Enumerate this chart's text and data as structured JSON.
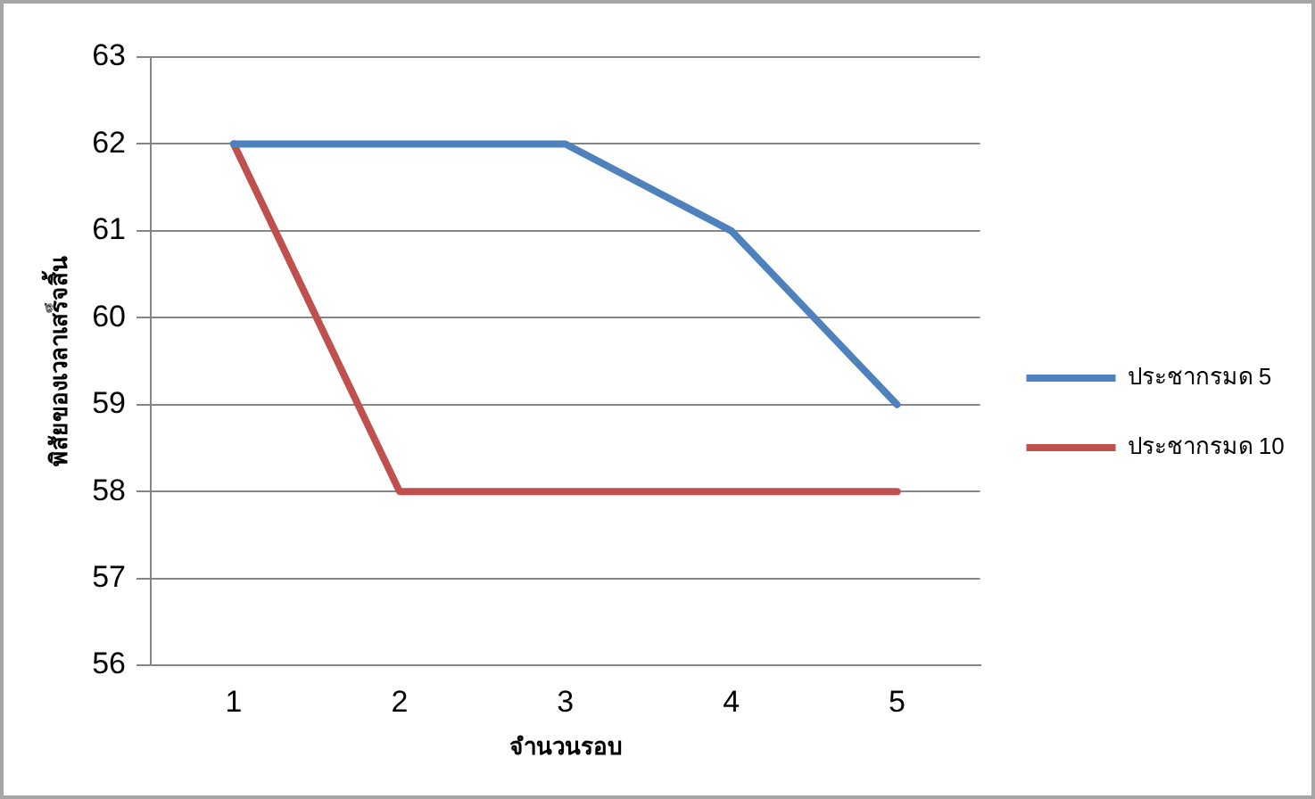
{
  "chart_data": {
    "type": "line",
    "xlabel": "จำนวนรอบ",
    "ylabel": "พิสัยของเวลาเสร็จสิ้น",
    "categories": [
      "1",
      "2",
      "3",
      "4",
      "5"
    ],
    "series": [
      {
        "name": "ประชากรมด 5",
        "color": "#4f81bd",
        "values": [
          62,
          62,
          62,
          61,
          59
        ]
      },
      {
        "name": "ประชากรมด 10",
        "color": "#c0504d",
        "values": [
          62,
          58,
          58,
          58,
          58
        ]
      }
    ],
    "ylim": [
      56,
      63
    ],
    "yticks": [
      56,
      57,
      58,
      59,
      60,
      61,
      62,
      63
    ],
    "grid": "y",
    "legend": "right",
    "marker": "none",
    "line_style": "solid"
  }
}
